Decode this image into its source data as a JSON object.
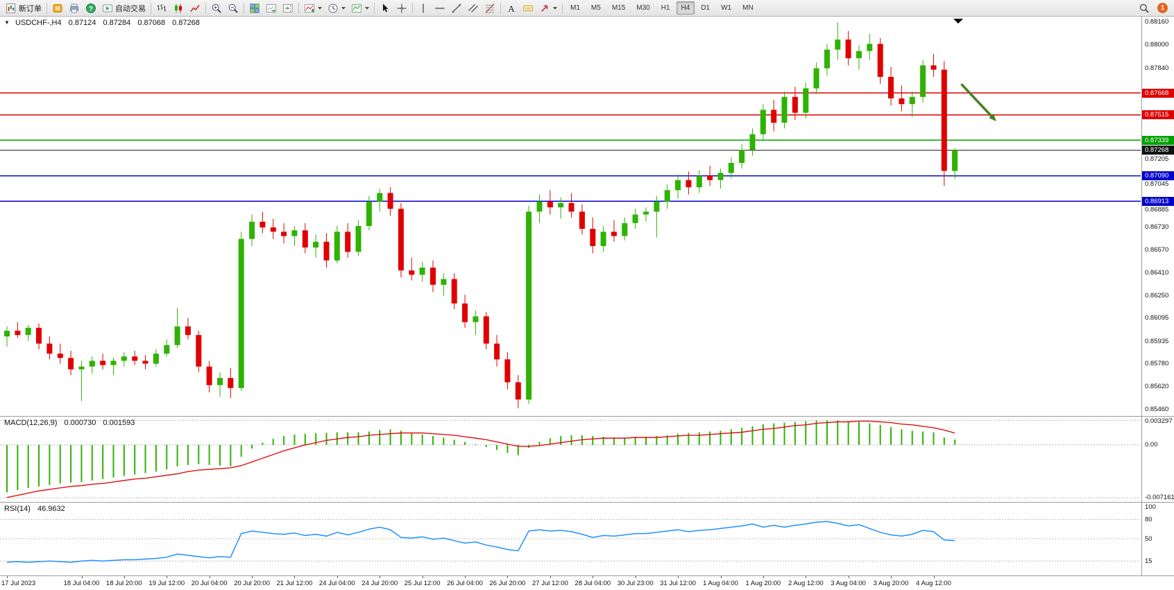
{
  "window": {
    "title_symbol": "USDCHF-,H4"
  },
  "toolbar": {
    "new_order_label": "新订单",
    "autotrading_label": "自动交易",
    "notification_count": "1",
    "timeframes": [
      "M1",
      "M5",
      "M15",
      "M30",
      "H1",
      "H4",
      "D1",
      "W1",
      "MN"
    ],
    "active_timeframe": "H4",
    "items": [
      {
        "name": "new-order-button",
        "icon": "new-order-icon",
        "label_key": "new_order_label"
      },
      {
        "sep": true
      },
      {
        "name": "mql-community-button",
        "icon": "mql-community-icon"
      },
      {
        "name": "print-button",
        "icon": "print-icon"
      },
      {
        "name": "help-button",
        "icon": "help-icon"
      },
      {
        "name": "autotrading-button",
        "icon": "autotrading-icon",
        "label_key": "autotrading_label"
      },
      {
        "sep": true
      },
      {
        "name": "bar-chart-button",
        "icon": "bar-chart-icon"
      },
      {
        "name": "candlestick-button",
        "icon": "candlestick-icon"
      },
      {
        "name": "line-chart-button",
        "icon": "line-chart-icon"
      },
      {
        "sep": true
      },
      {
        "name": "zoom-in-button",
        "icon": "zoom-in-icon"
      },
      {
        "name": "zoom-out-button",
        "icon": "zoom-out-icon"
      },
      {
        "sep": true
      },
      {
        "name": "tile-windows-button",
        "icon": "tile-windows-icon"
      },
      {
        "name": "auto-scroll-button",
        "icon": "auto-scroll-icon"
      },
      {
        "name": "chart-shift-button",
        "icon": "chart-shift-icon"
      },
      {
        "sep": true
      },
      {
        "name": "indicators-button",
        "icon": "indicators-icon",
        "caret": true
      },
      {
        "name": "periods-button",
        "icon": "periods-icon",
        "caret": true
      },
      {
        "name": "templates-button",
        "icon": "templates-icon",
        "caret": true
      },
      {
        "sep": true
      },
      {
        "name": "cursor-button",
        "icon": "cursor-icon"
      },
      {
        "name": "crosshair-button",
        "icon": "crosshair-icon"
      },
      {
        "sep": true
      },
      {
        "name": "vertical-line-button",
        "icon": "vertical-line-icon"
      },
      {
        "name": "horizontal-line-button",
        "icon": "horizontal-line-icon"
      },
      {
        "name": "trendline-button",
        "icon": "trendline-icon"
      },
      {
        "name": "equidistant-channel-button",
        "icon": "channel-icon"
      },
      {
        "name": "fibonacci-button",
        "icon": "fibonacci-icon"
      },
      {
        "sep": true
      },
      {
        "name": "text-button",
        "icon": "text-icon"
      },
      {
        "name": "text-label-button",
        "icon": "text-label-icon"
      },
      {
        "name": "arrows-button",
        "icon": "arrow-icon",
        "caret": true
      },
      {
        "sep": true
      }
    ]
  },
  "chart": {
    "ohlc": {
      "open": "0.87124",
      "high": "0.87284",
      "low": "0.87068",
      "close": "0.87268"
    },
    "price_range": {
      "max": 0.882,
      "min": 0.8542
    },
    "levels": [
      {
        "price": "0.87668",
        "value": 0.87668,
        "color": "#dd0000",
        "type": "resistance"
      },
      {
        "price": "0.87515",
        "value": 0.87515,
        "color": "#dd0000",
        "type": "resistance"
      },
      {
        "price": "0.87339",
        "value": 0.87339,
        "color": "#00a000",
        "type": "support"
      },
      {
        "price": "0.87268",
        "value": 0.87268,
        "color": "#111111",
        "type": "bid"
      },
      {
        "price": "0.87090",
        "value": 0.8709,
        "color": "#0000cc",
        "type": "support"
      },
      {
        "price": "0.86913",
        "value": 0.86913,
        "color": "#0000cc",
        "type": "support"
      }
    ],
    "axis_labels": [
      "0.88160",
      "0.88000",
      "0.87840",
      "0.87205",
      "0.87045",
      "0.86885",
      "0.86730",
      "0.86570",
      "0.86410",
      "0.86250",
      "0.86095",
      "0.85935",
      "0.85780",
      "0.85620",
      "0.85460"
    ]
  },
  "macd": {
    "label": "MACD(12,26,9)",
    "value_main": "0.000730",
    "value_signal": "0.001593",
    "axis_labels": [
      "0.003297",
      "0.00",
      "-0.007161"
    ],
    "range": {
      "max": 0.0038,
      "min": -0.0076
    }
  },
  "rsi": {
    "label": "RSI(14)",
    "value": "46.9632",
    "axis_labels": [
      "100",
      "80",
      "50",
      "15"
    ],
    "levels": [
      80,
      50,
      15
    ],
    "range": {
      "max": 100,
      "min": 0
    }
  },
  "time_axis": [
    "17 Jul 2023",
    "18 Jul 04:00",
    "18 Jul 20:00",
    "19 Jul 12:00",
    "20 Jul 04:00",
    "20 Jul 20:00",
    "21 Jul 12:00",
    "24 Jul 04:00",
    "24 Jul 20:00",
    "25 Jul 12:00",
    "26 Jul 04:00",
    "26 Jul 20:00",
    "27 Jul 12:00",
    "28 Jul 04:00",
    "30 Jul 23:00",
    "31 Jul 12:00",
    "1 Aug 04:00",
    "1 Aug 20:00",
    "2 Aug 12:00",
    "3 Aug 04:00",
    "3 Aug 20:00",
    "4 Aug 12:00"
  ],
  "chart_data": {
    "type": "candlestick",
    "symbol": "USDCHF-",
    "timeframe": "H4",
    "colors": {
      "up": "#2db300",
      "down": "#e00000",
      "macd_hist": "#2db300",
      "macd_signal": "#e01010",
      "rsi_line": "#1e90ff"
    },
    "annotation": {
      "type": "arrow-down-right",
      "color": "#47801f",
      "from": {
        "bar": 89.6,
        "price": 0.8773
      },
      "to": {
        "bar": 92.9,
        "price": 0.8747
      }
    },
    "candles": [
      [
        0.8597,
        0.8604,
        0.859,
        0.8601
      ],
      [
        0.8601,
        0.8607,
        0.8596,
        0.8598
      ],
      [
        0.8598,
        0.8605,
        0.8594,
        0.8603
      ],
      [
        0.8603,
        0.8606,
        0.8588,
        0.8592
      ],
      [
        0.8592,
        0.8597,
        0.8581,
        0.8585
      ],
      [
        0.8585,
        0.8592,
        0.8578,
        0.8582
      ],
      [
        0.8582,
        0.8587,
        0.857,
        0.8574
      ],
      [
        0.8574,
        0.858,
        0.8552,
        0.8576
      ],
      [
        0.8576,
        0.8583,
        0.8571,
        0.858
      ],
      [
        0.858,
        0.8585,
        0.8574,
        0.8577
      ],
      [
        0.8577,
        0.8582,
        0.857,
        0.858
      ],
      [
        0.858,
        0.8586,
        0.8576,
        0.8583
      ],
      [
        0.8583,
        0.8587,
        0.8577,
        0.858
      ],
      [
        0.858,
        0.8584,
        0.8574,
        0.8578
      ],
      [
        0.8578,
        0.8588,
        0.8576,
        0.8585
      ],
      [
        0.8585,
        0.8595,
        0.8583,
        0.8591
      ],
      [
        0.8591,
        0.8617,
        0.8589,
        0.8604
      ],
      [
        0.8604,
        0.861,
        0.8595,
        0.8598
      ],
      [
        0.8598,
        0.8601,
        0.8572,
        0.8576
      ],
      [
        0.8576,
        0.858,
        0.8558,
        0.8563
      ],
      [
        0.8563,
        0.8572,
        0.8555,
        0.8568
      ],
      [
        0.8568,
        0.8575,
        0.8554,
        0.8561
      ],
      [
        0.8561,
        0.867,
        0.8559,
        0.8665
      ],
      [
        0.8665,
        0.8682,
        0.866,
        0.8677
      ],
      [
        0.8677,
        0.8684,
        0.8669,
        0.8673
      ],
      [
        0.8673,
        0.8679,
        0.8665,
        0.867
      ],
      [
        0.867,
        0.8676,
        0.8662,
        0.8667
      ],
      [
        0.8667,
        0.8674,
        0.866,
        0.8671
      ],
      [
        0.8671,
        0.8676,
        0.8655,
        0.8659
      ],
      [
        0.8659,
        0.8668,
        0.8652,
        0.8663
      ],
      [
        0.8663,
        0.8669,
        0.8645,
        0.865
      ],
      [
        0.865,
        0.8674,
        0.8648,
        0.867
      ],
      [
        0.867,
        0.8676,
        0.8652,
        0.8656
      ],
      [
        0.8656,
        0.8678,
        0.8653,
        0.8674
      ],
      [
        0.8674,
        0.8695,
        0.8671,
        0.8691
      ],
      [
        0.8691,
        0.87,
        0.8684,
        0.8697
      ],
      [
        0.8697,
        0.8701,
        0.8681,
        0.8686
      ],
      [
        0.8686,
        0.869,
        0.8638,
        0.8643
      ],
      [
        0.8643,
        0.8652,
        0.8636,
        0.864
      ],
      [
        0.864,
        0.8649,
        0.8635,
        0.8645
      ],
      [
        0.8645,
        0.865,
        0.8628,
        0.8633
      ],
      [
        0.8633,
        0.8641,
        0.8625,
        0.8637
      ],
      [
        0.8637,
        0.8641,
        0.8616,
        0.862
      ],
      [
        0.862,
        0.8626,
        0.8603,
        0.8607
      ],
      [
        0.8607,
        0.8615,
        0.8598,
        0.8611
      ],
      [
        0.8611,
        0.8614,
        0.8588,
        0.8592
      ],
      [
        0.8592,
        0.8598,
        0.8576,
        0.8581
      ],
      [
        0.8581,
        0.8586,
        0.856,
        0.8565
      ],
      [
        0.8565,
        0.857,
        0.8547,
        0.8553
      ],
      [
        0.8553,
        0.8688,
        0.855,
        0.8684
      ],
      [
        0.8684,
        0.8696,
        0.8676,
        0.8691
      ],
      [
        0.8691,
        0.8699,
        0.8682,
        0.8687
      ],
      [
        0.8687,
        0.8694,
        0.8679,
        0.869
      ],
      [
        0.869,
        0.8697,
        0.868,
        0.8684
      ],
      [
        0.8684,
        0.8689,
        0.8668,
        0.8672
      ],
      [
        0.8672,
        0.868,
        0.8655,
        0.866
      ],
      [
        0.866,
        0.8674,
        0.8656,
        0.867
      ],
      [
        0.867,
        0.8678,
        0.8663,
        0.8667
      ],
      [
        0.8667,
        0.868,
        0.8664,
        0.8676
      ],
      [
        0.8676,
        0.8686,
        0.8672,
        0.8682
      ],
      [
        0.8682,
        0.8687,
        0.8677,
        0.8684
      ],
      [
        0.8684,
        0.8695,
        0.8666,
        0.8691
      ],
      [
        0.8691,
        0.8703,
        0.8686,
        0.8699
      ],
      [
        0.8699,
        0.871,
        0.8693,
        0.8706
      ],
      [
        0.8706,
        0.8712,
        0.8696,
        0.8701
      ],
      [
        0.8701,
        0.8713,
        0.8697,
        0.8709
      ],
      [
        0.8709,
        0.8716,
        0.8702,
        0.8706
      ],
      [
        0.8706,
        0.8714,
        0.87,
        0.8711
      ],
      [
        0.8711,
        0.8722,
        0.8707,
        0.8718
      ],
      [
        0.8718,
        0.8731,
        0.8714,
        0.8727
      ],
      [
        0.8727,
        0.8742,
        0.8723,
        0.8738
      ],
      [
        0.8738,
        0.8759,
        0.8734,
        0.8755
      ],
      [
        0.8755,
        0.8762,
        0.874,
        0.8746
      ],
      [
        0.8746,
        0.8768,
        0.8742,
        0.8764
      ],
      [
        0.8764,
        0.8771,
        0.8748,
        0.8753
      ],
      [
        0.8753,
        0.8774,
        0.8749,
        0.877
      ],
      [
        0.877,
        0.8788,
        0.8766,
        0.8784
      ],
      [
        0.8784,
        0.8801,
        0.8779,
        0.8797
      ],
      [
        0.8797,
        0.8816,
        0.879,
        0.8804
      ],
      [
        0.8804,
        0.881,
        0.8786,
        0.8791
      ],
      [
        0.8791,
        0.88,
        0.8783,
        0.8796
      ],
      [
        0.8796,
        0.8808,
        0.879,
        0.8801
      ],
      [
        0.8801,
        0.8805,
        0.8773,
        0.8778
      ],
      [
        0.8778,
        0.8785,
        0.8758,
        0.8763
      ],
      [
        0.8763,
        0.8772,
        0.8754,
        0.8759
      ],
      [
        0.8759,
        0.8768,
        0.875,
        0.8764
      ],
      [
        0.8764,
        0.879,
        0.876,
        0.8786
      ],
      [
        0.8786,
        0.8794,
        0.8778,
        0.8783
      ],
      [
        0.8783,
        0.8789,
        0.8702,
        0.87124
      ],
      [
        0.87124,
        0.87284,
        0.87068,
        0.87268
      ]
    ],
    "macd_hist": [
      -0.0064,
      -0.0061,
      -0.0058,
      -0.0056,
      -0.0054,
      -0.0052,
      -0.0051,
      -0.005,
      -0.0048,
      -0.0046,
      -0.0044,
      -0.0042,
      -0.004,
      -0.0038,
      -0.0036,
      -0.0033,
      -0.0029,
      -0.0027,
      -0.0026,
      -0.0027,
      -0.0028,
      -0.0029,
      -0.0016,
      -0.0005,
      0.0003,
      0.0008,
      0.0012,
      0.0014,
      0.0015,
      0.0016,
      0.0016,
      0.0017,
      0.0017,
      0.0017,
      0.0018,
      0.002,
      0.0021,
      0.0019,
      0.0016,
      0.0014,
      0.0012,
      0.001,
      0.0007,
      0.0004,
      0.0001,
      -0.0003,
      -0.0007,
      -0.0011,
      -0.0014,
      -0.0004,
      0.0004,
      0.0009,
      0.0012,
      0.0013,
      0.0013,
      0.0012,
      0.0011,
      0.001,
      0.001,
      0.0011,
      0.0011,
      0.0012,
      0.0013,
      0.0015,
      0.0016,
      0.0017,
      0.0018,
      0.0019,
      0.0021,
      0.0023,
      0.0025,
      0.0028,
      0.0029,
      0.003,
      0.0031,
      0.0032,
      0.0033,
      0.0033,
      0.0033,
      0.0032,
      0.0031,
      0.0029,
      0.0027,
      0.0024,
      0.0021,
      0.0019,
      0.0018,
      0.0017,
      0.001,
      0.00073
    ],
    "macd_signal": [
      -0.0071,
      -0.0068,
      -0.0065,
      -0.0062,
      -0.006,
      -0.0058,
      -0.0056,
      -0.0055,
      -0.0053,
      -0.0052,
      -0.005,
      -0.0048,
      -0.0046,
      -0.0045,
      -0.0043,
      -0.0041,
      -0.0039,
      -0.0036,
      -0.0034,
      -0.0033,
      -0.0032,
      -0.0031,
      -0.0028,
      -0.0023,
      -0.0018,
      -0.0013,
      -0.0008,
      -0.0004,
      0.0,
      0.0003,
      0.0006,
      0.0008,
      0.001,
      0.0011,
      0.0013,
      0.0014,
      0.0015,
      0.0016,
      0.0016,
      0.0016,
      0.0015,
      0.0014,
      0.0013,
      0.0011,
      0.0009,
      0.0007,
      0.0004,
      0.0001,
      -0.0002,
      -0.0002,
      -0.0001,
      0.0001,
      0.0003,
      0.0005,
      0.0007,
      0.0008,
      0.0009,
      0.0009,
      0.0009,
      0.001,
      0.001,
      0.001,
      0.0011,
      0.0012,
      0.0013,
      0.0013,
      0.0014,
      0.0015,
      0.0016,
      0.0017,
      0.0019,
      0.0021,
      0.0022,
      0.0024,
      0.0026,
      0.0027,
      0.0029,
      0.003,
      0.0031,
      0.0031,
      0.0032,
      0.0032,
      0.0031,
      0.003,
      0.0028,
      0.0027,
      0.0025,
      0.0023,
      0.002,
      0.001593
    ],
    "rsi": [
      13,
      14,
      13,
      14,
      15,
      14,
      13,
      15,
      16,
      15,
      16,
      17,
      17,
      18,
      19,
      21,
      26,
      24,
      22,
      20,
      22,
      21,
      58,
      62,
      60,
      58,
      57,
      59,
      55,
      57,
      54,
      60,
      56,
      60,
      65,
      68,
      64,
      52,
      51,
      53,
      49,
      51,
      47,
      43,
      45,
      40,
      37,
      33,
      31,
      62,
      64,
      62,
      63,
      61,
      57,
      52,
      55,
      54,
      56,
      58,
      58,
      60,
      62,
      64,
      61,
      63,
      64,
      66,
      68,
      70,
      73,
      68,
      71,
      68,
      71,
      73,
      76,
      77,
      74,
      70,
      72,
      66,
      60,
      56,
      54,
      57,
      63,
      61,
      48,
      46.96
    ]
  }
}
